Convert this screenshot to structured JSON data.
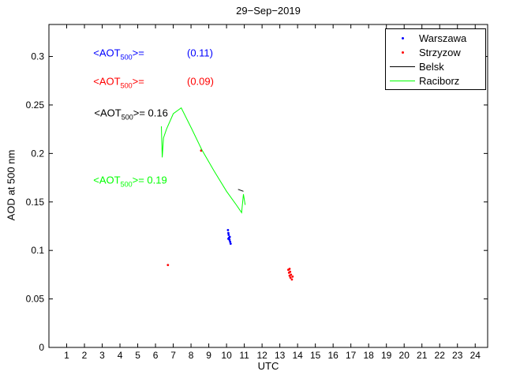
{
  "chart_data": {
    "type": "line+scatter",
    "title": "29−Sep−2019",
    "xlabel": "UTC",
    "ylabel": "AOD at 500 nm",
    "xlim": [
      0,
      24.7
    ],
    "ylim": [
      0,
      0.333
    ],
    "grid": false,
    "legend_position": "top-right",
    "xticks": {
      "values": [
        1,
        2,
        3,
        4,
        5,
        6,
        7,
        8,
        9,
        10,
        11,
        12,
        13,
        14,
        15,
        16,
        17,
        18,
        19,
        20,
        21,
        22,
        23,
        24
      ],
      "labels": [
        "1",
        "2",
        "3",
        "4",
        "5",
        "6",
        "7",
        "8",
        "9",
        "10",
        "11",
        "12",
        "13",
        "14",
        "15",
        "16",
        "17",
        "18",
        "19",
        "20",
        "21",
        "22",
        "23",
        "24"
      ]
    },
    "yticks": {
      "values": [
        0,
        0.05,
        0.1,
        0.15,
        0.2,
        0.25,
        0.3
      ],
      "labels": [
        "0",
        "0.05",
        "0.1",
        "0.15",
        "0.2",
        "0.25",
        "0.3"
      ]
    },
    "series": [
      {
        "name": "Warszawa",
        "mode": "scatter",
        "color": "#0000ff",
        "marker": "dot",
        "points": [
          [
            10.08,
            0.121
          ],
          [
            10.1,
            0.118
          ],
          [
            10.12,
            0.116
          ],
          [
            10.14,
            0.113
          ],
          [
            10.1,
            0.112
          ],
          [
            10.17,
            0.111
          ],
          [
            10.18,
            0.114
          ],
          [
            10.2,
            0.109
          ],
          [
            10.23,
            0.107
          ]
        ]
      },
      {
        "name": "Strzyzow",
        "mode": "scatter",
        "color": "#ff0000",
        "marker": "dot",
        "points": [
          [
            6.7,
            0.085
          ],
          [
            8.57,
            0.203
          ],
          [
            13.48,
            0.08
          ],
          [
            13.52,
            0.077
          ],
          [
            13.55,
            0.081
          ],
          [
            13.55,
            0.074
          ],
          [
            13.58,
            0.078
          ],
          [
            13.6,
            0.072
          ],
          [
            13.63,
            0.075
          ],
          [
            13.68,
            0.07
          ],
          [
            13.72,
            0.073
          ]
        ]
      },
      {
        "name": "Belsk",
        "mode": "line",
        "color": "#000000",
        "points": [
          [
            10.65,
            0.163
          ],
          [
            10.95,
            0.161
          ]
        ]
      },
      {
        "name": "Raciborz",
        "mode": "line",
        "color": "#00ff00",
        "points": [
          [
            6.33,
            0.228
          ],
          [
            6.38,
            0.196
          ],
          [
            6.45,
            0.216
          ],
          [
            6.62,
            0.225
          ],
          [
            7.0,
            0.241
          ],
          [
            7.45,
            0.247
          ],
          [
            8.05,
            0.225
          ],
          [
            8.6,
            0.204
          ],
          [
            9.3,
            0.182
          ],
          [
            10.0,
            0.161
          ],
          [
            10.55,
            0.147
          ],
          [
            10.85,
            0.139
          ],
          [
            10.95,
            0.158
          ],
          [
            11.05,
            0.147
          ]
        ]
      }
    ],
    "annotations": [
      {
        "series": "Warszawa",
        "pre": "<AOT",
        "sub": "500",
        "post": ">=               (0.11)",
        "color": "#0000ff",
        "x": 2.5,
        "y": 0.302
      },
      {
        "series": "Strzyzow",
        "pre": "<AOT",
        "sub": "500",
        "post": ">=               (0.09)",
        "color": "#ff0000",
        "x": 2.5,
        "y": 0.273
      },
      {
        "series": "Belsk",
        "pre": "<AOT",
        "sub": "500",
        "post": ">= 0.16",
        "color": "#000000",
        "x": 2.55,
        "y": 0.24
      },
      {
        "series": "Raciborz",
        "pre": "<AOT",
        "sub": "500",
        "post": ">= 0.19",
        "color": "#00ff00",
        "x": 2.5,
        "y": 0.171
      }
    ]
  },
  "legend": {
    "items": [
      {
        "label": "Warszawa",
        "marker": "dot",
        "color": "#0000ff"
      },
      {
        "label": "Strzyzow",
        "marker": "dot",
        "color": "#ff0000"
      },
      {
        "label": "Belsk",
        "marker": "line",
        "color": "#000000"
      },
      {
        "label": "Raciborz",
        "marker": "line",
        "color": "#00ff00"
      }
    ]
  }
}
